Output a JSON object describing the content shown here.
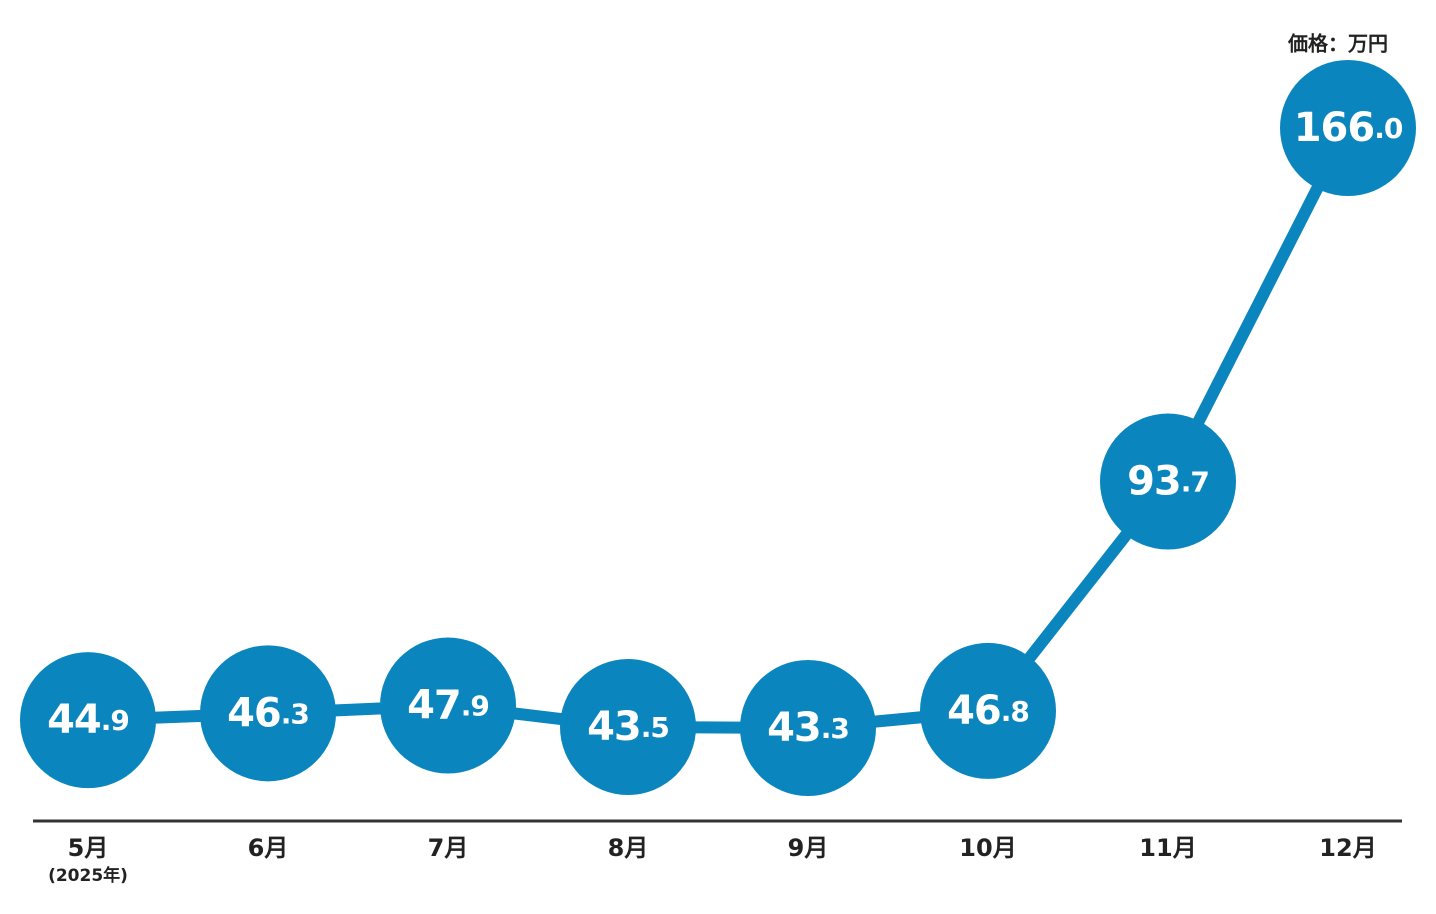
{
  "chart_data": {
    "type": "line",
    "unit_label": "価格：万円",
    "annotation": "(2025年)",
    "categories": [
      "5月",
      "6月",
      "7月",
      "8月",
      "9月",
      "10月",
      "11月",
      "12月"
    ],
    "values": [
      44.9,
      46.3,
      47.9,
      43.5,
      43.3,
      46.8,
      93.7,
      166.0
    ],
    "value_labels": [
      "44.9",
      "46.3",
      "47.9",
      "43.5",
      "43.3",
      "46.8",
      "93.7",
      "166.0"
    ],
    "color": "#0a85bd"
  }
}
